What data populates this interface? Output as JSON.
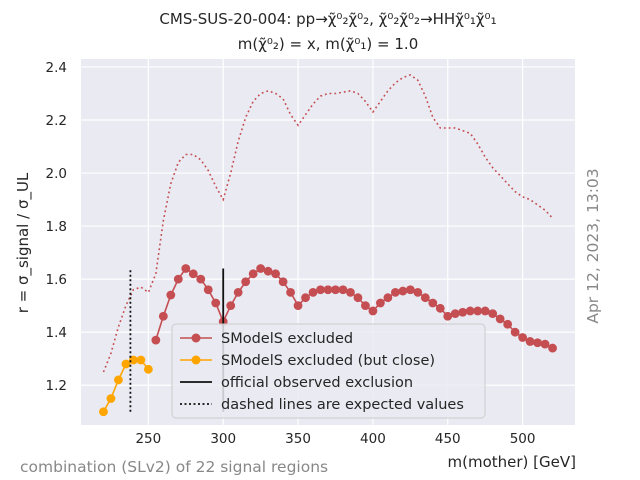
{
  "chart_data": {
    "type": "line",
    "title_line1": "CMS-SUS-20-004: pp→χ̃⁰₂χ̃⁰₂, χ̃⁰₂χ̃⁰₂→HHχ̃⁰₁χ̃⁰₁",
    "title_line2": "m(χ̃⁰₂) = x, m(χ̃⁰₁) = 1.0",
    "xlabel": "m(mother) [GeV]",
    "ylabel": "r = σ_signal / σ_UL",
    "xlim": [
      205,
      535
    ],
    "ylim": [
      1.05,
      2.43
    ],
    "xticks": [
      250,
      300,
      350,
      400,
      450,
      500
    ],
    "yticks": [
      1.2,
      1.4,
      1.6,
      1.8,
      2.0,
      2.2,
      2.4
    ],
    "grid": true,
    "legend_position": "lower-center",
    "legend": [
      {
        "label": "SModelS excluded",
        "style": "red-line-marker"
      },
      {
        "label": "SModelS excluded (but close)",
        "style": "orange-line-marker"
      },
      {
        "label": "official observed exclusion",
        "style": "solid-black"
      },
      {
        "label": "dashed lines are expected values",
        "style": "dotted-black"
      }
    ],
    "series": [
      {
        "name": "SModelS excluded",
        "color": "#c44e52",
        "x": [
          255,
          260,
          265,
          270,
          275,
          280,
          285,
          290,
          295,
          300,
          305,
          310,
          315,
          320,
          325,
          330,
          335,
          340,
          345,
          350,
          355,
          360,
          365,
          370,
          375,
          380,
          385,
          390,
          395,
          400,
          405,
          410,
          415,
          420,
          425,
          430,
          435,
          440,
          445,
          450,
          455,
          460,
          465,
          470,
          475,
          480,
          485,
          490,
          495,
          500,
          505,
          510,
          515,
          520
        ],
        "y": [
          1.37,
          1.46,
          1.54,
          1.6,
          1.64,
          1.62,
          1.6,
          1.56,
          1.51,
          1.44,
          1.5,
          1.55,
          1.59,
          1.62,
          1.64,
          1.63,
          1.62,
          1.59,
          1.55,
          1.5,
          1.53,
          1.55,
          1.56,
          1.56,
          1.56,
          1.56,
          1.55,
          1.53,
          1.5,
          1.48,
          1.51,
          1.53,
          1.55,
          1.555,
          1.56,
          1.55,
          1.53,
          1.51,
          1.49,
          1.46,
          1.47,
          1.475,
          1.48,
          1.48,
          1.48,
          1.47,
          1.45,
          1.43,
          1.4,
          1.38,
          1.365,
          1.36,
          1.355,
          1.34
        ]
      },
      {
        "name": "SModelS excluded (but close)",
        "color": "#ffa500",
        "x": [
          220,
          225,
          230,
          235,
          240,
          245,
          250
        ],
        "y": [
          1.1,
          1.15,
          1.22,
          1.28,
          1.295,
          1.295,
          1.26
        ]
      },
      {
        "name": "expected r",
        "color": "#c44e52",
        "style": "dotted",
        "x": [
          220,
          225,
          230,
          235,
          240,
          245,
          250,
          255,
          260,
          265,
          270,
          275,
          280,
          285,
          290,
          295,
          300,
          305,
          310,
          315,
          320,
          325,
          330,
          335,
          340,
          345,
          350,
          355,
          360,
          365,
          370,
          375,
          380,
          385,
          390,
          395,
          400,
          405,
          410,
          415,
          420,
          425,
          430,
          435,
          440,
          445,
          450,
          455,
          460,
          465,
          470,
          475,
          480,
          485,
          490,
          495,
          500,
          505,
          510,
          515,
          520
        ],
        "y": [
          1.25,
          1.32,
          1.42,
          1.5,
          1.56,
          1.57,
          1.55,
          1.62,
          1.82,
          1.96,
          2.04,
          2.07,
          2.07,
          2.05,
          2.01,
          1.95,
          1.9,
          2.0,
          2.12,
          2.21,
          2.27,
          2.3,
          2.31,
          2.3,
          2.28,
          2.22,
          2.18,
          2.22,
          2.26,
          2.29,
          2.3,
          2.3,
          2.305,
          2.31,
          2.3,
          2.27,
          2.23,
          2.27,
          2.31,
          2.34,
          2.36,
          2.37,
          2.35,
          2.29,
          2.21,
          2.17,
          2.17,
          2.17,
          2.16,
          2.15,
          2.11,
          2.06,
          2.02,
          1.99,
          1.96,
          1.93,
          1.91,
          1.9,
          1.88,
          1.86,
          1.83
        ]
      }
    ],
    "official_observed_exclusion": {
      "x": 300,
      "y_range": [
        1.1,
        1.64
      ]
    },
    "official_expected_exclusion": {
      "x": 238,
      "y_range": [
        1.1,
        1.64
      ]
    }
  },
  "annotations": {
    "timestamp": "Apr 12, 2023, 13:03",
    "footer_note": "combination (SLv2) of 22 signal regions"
  }
}
